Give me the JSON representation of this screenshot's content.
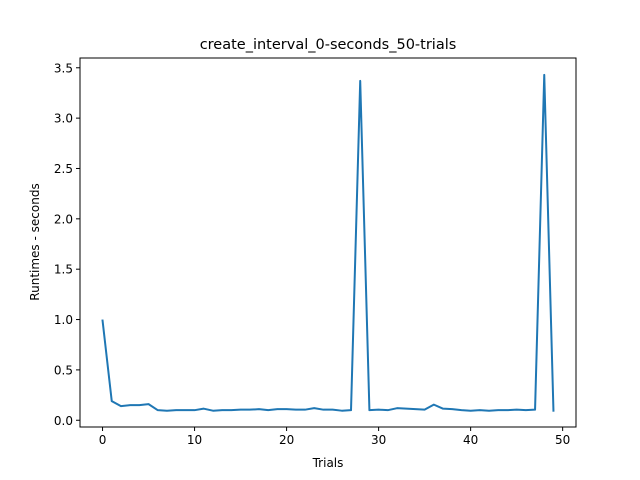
{
  "chart_data": {
    "type": "line",
    "title": "create_interval_0-seconds_50-trials",
    "xlabel": "Trials",
    "ylabel": "Runtimes - seconds",
    "xlim": [
      -2.45,
      51.45
    ],
    "ylim": [
      -0.067,
      3.597
    ],
    "xticks": [
      0,
      10,
      20,
      30,
      40,
      50
    ],
    "yticks": [
      0.0,
      0.5,
      1.0,
      1.5,
      2.0,
      2.5,
      3.0,
      3.5
    ],
    "xtick_labels": [
      "0",
      "10",
      "20",
      "30",
      "40",
      "50"
    ],
    "ytick_labels": [
      "0.0",
      "0.5",
      "1.0",
      "1.5",
      "2.0",
      "2.5",
      "3.0",
      "3.5"
    ],
    "grid": false,
    "series": [
      {
        "color": "#1f77b4",
        "x": [
          0,
          1,
          2,
          3,
          4,
          5,
          6,
          7,
          8,
          9,
          10,
          11,
          12,
          13,
          14,
          15,
          16,
          17,
          18,
          19,
          20,
          21,
          22,
          23,
          24,
          25,
          26,
          27,
          28,
          29,
          30,
          31,
          32,
          33,
          34,
          35,
          36,
          37,
          38,
          39,
          40,
          41,
          42,
          43,
          44,
          45,
          46,
          47,
          48,
          49
        ],
        "values": [
          0.99,
          0.19,
          0.14,
          0.15,
          0.15,
          0.16,
          0.1,
          0.095,
          0.1,
          0.1,
          0.1,
          0.115,
          0.095,
          0.1,
          0.1,
          0.105,
          0.105,
          0.11,
          0.1,
          0.11,
          0.11,
          0.105,
          0.105,
          0.12,
          0.105,
          0.105,
          0.095,
          0.1,
          3.37,
          0.1,
          0.105,
          0.1,
          0.12,
          0.115,
          0.11,
          0.105,
          0.155,
          0.115,
          0.11,
          0.1,
          0.095,
          0.1,
          0.095,
          0.1,
          0.1,
          0.105,
          0.1,
          0.105,
          3.43,
          0.095
        ]
      }
    ]
  }
}
